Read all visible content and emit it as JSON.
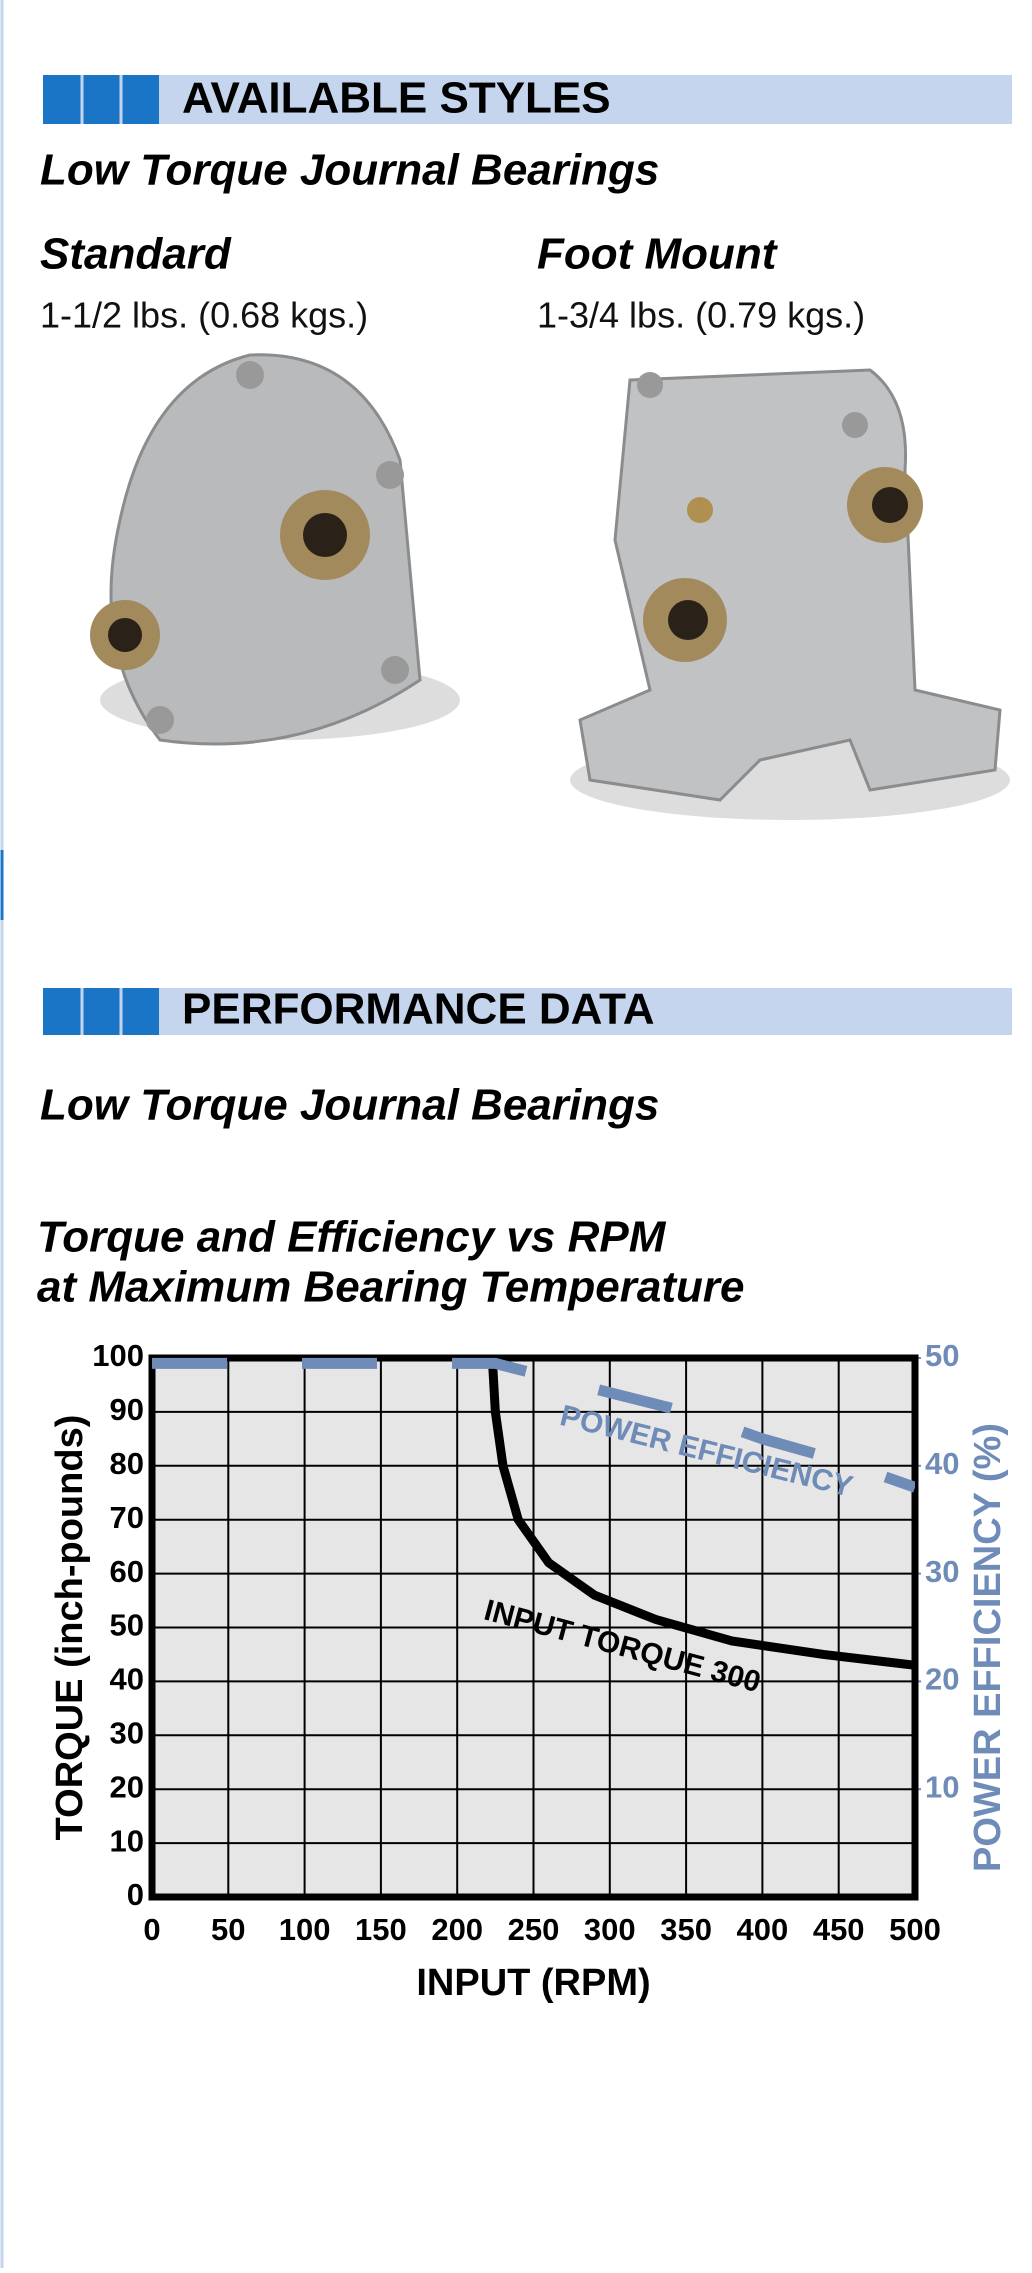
{
  "styles": {
    "header": "AVAILABLE STYLES",
    "subtitle": "Low Torque Journal Bearings",
    "items": [
      {
        "name": "Standard",
        "weight": "1-1/2 lbs.  (0.68 kgs.)"
      },
      {
        "name": "Foot Mount",
        "weight": "1-3/4 lbs.  (0.79 kgs.)"
      }
    ]
  },
  "performance": {
    "header": "PERFORMANCE DATA",
    "subtitle": "Low Torque Journal Bearings"
  },
  "chart_data": {
    "type": "line",
    "title": "Torque and Efficiency vs RPM",
    "subtitle": "at Maximum Bearing Temperature",
    "xlabel": "INPUT (RPM)",
    "ylabel": "TORQUE (inch-pounds)",
    "y2label": "POWER EFFICIENCY (%)",
    "xlim": [
      0,
      500
    ],
    "xticks": [
      0,
      50,
      100,
      150,
      200,
      250,
      300,
      350,
      400,
      450,
      500
    ],
    "ylim": [
      0,
      100
    ],
    "yticks": [
      0,
      10,
      20,
      30,
      40,
      50,
      60,
      70,
      80,
      90,
      100
    ],
    "y2lim": [
      0,
      50
    ],
    "y2ticks": [
      10,
      20,
      30,
      40,
      50
    ],
    "grid": true,
    "series": [
      {
        "name": "INPUT TORQUE 300",
        "color": "#000000",
        "x": [
          223,
          225,
          230,
          240,
          260,
          290,
          330,
          380,
          440,
          500
        ],
        "values": [
          100,
          90,
          80,
          70,
          62,
          56,
          51.5,
          47.5,
          45,
          43
        ]
      },
      {
        "name": "POWER EFFICIENCY",
        "color": "#6f8bb8",
        "axis": "y2",
        "dashed": true,
        "x": [
          0,
          225,
          280,
          350,
          400,
          450,
          500
        ],
        "values": [
          49.5,
          49.5,
          47.5,
          45,
          42.5,
          40.5,
          38
        ]
      }
    ]
  }
}
